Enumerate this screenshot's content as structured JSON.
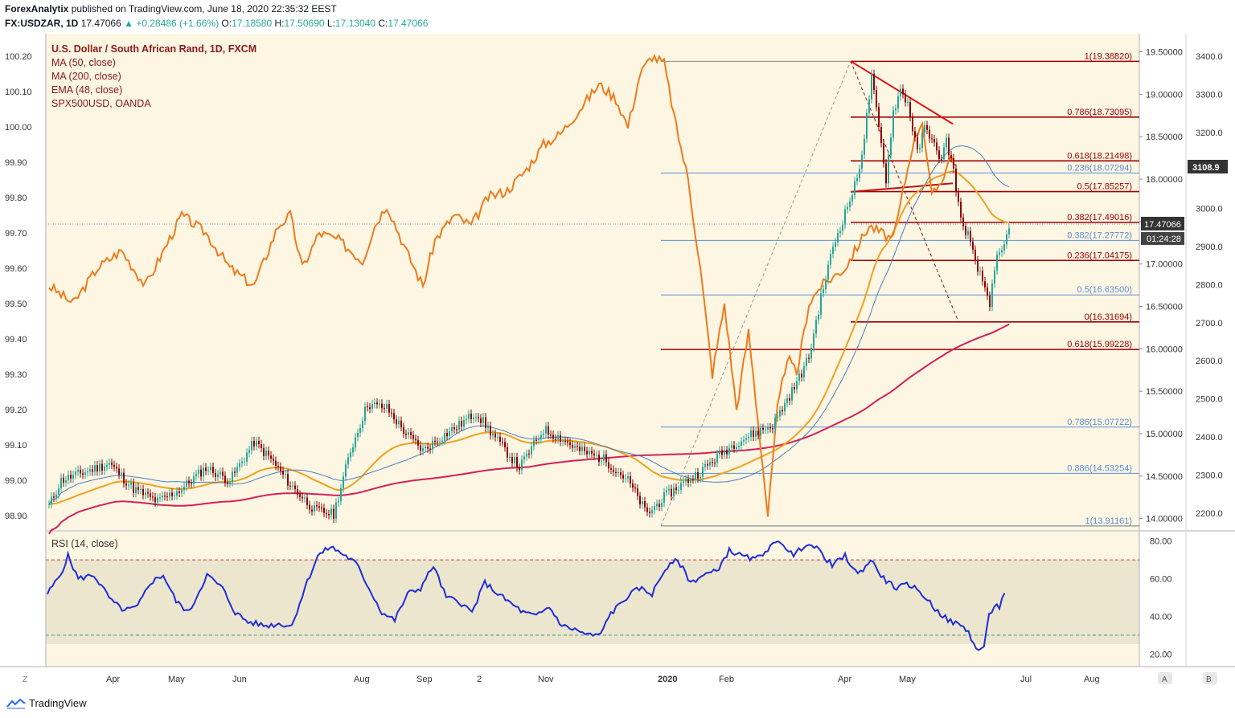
{
  "header": {
    "publisher": "ForexAnalytix",
    "published_text": "published on TradingView.com, June 18, 2020 22:35:32 EEST",
    "symbol": "FX:USDZAR, 1D",
    "last": "17.47066",
    "change": "+0.28486 (+1.66%)",
    "o_label": "O:",
    "o": "17.18580",
    "h_label": "H:",
    "h": "17.50690",
    "l_label": "L:",
    "l": "17.13040",
    "c_label": "C:",
    "c": "17.47066"
  },
  "legend": {
    "title": "U.S. Dollar / South African Rand, 1D, FXCM",
    "items": [
      "MA (50, close)",
      "MA (200, close)",
      "EMA (48, close)",
      "SPX500USD, OANDA"
    ]
  },
  "rsi_label": "RSI (14, close)",
  "footer": {
    "brand": "TradingView"
  },
  "axis_buttons": {
    "left": "Z",
    "right_a": "A",
    "right_b": "B"
  },
  "colors": {
    "background": "#fdf6e3",
    "candle_up": "#26a69a",
    "candle_down": "#8b0000",
    "ma50": "#4a7fc1",
    "ma200": "#d41f5c",
    "ema48": "#f0a020",
    "spx": "#f07a1a",
    "fib_red": "#a00000",
    "fib_blue": "#5b8fd6",
    "rsi": "#1c2dd8",
    "price_tag": "#333333"
  },
  "chart_data": {
    "type": "candlestick",
    "title": "U.S. Dollar / South African Rand, 1D, FXCM",
    "x_labels": [
      "Apr",
      "May",
      "Jun",
      "Aug",
      "Sep",
      "2",
      "Nov",
      "2020",
      "Feb",
      "Apr",
      "May",
      "Jul",
      "Aug"
    ],
    "left_axis": {
      "ticks": [
        "100.20",
        "100.10",
        "100.00",
        "99.90",
        "99.80",
        "99.70",
        "99.60",
        "99.50",
        "99.40",
        "99.30",
        "99.20",
        "99.10",
        "99.00",
        "98.90"
      ],
      "range": [
        98.88,
        100.25
      ]
    },
    "price_axis": {
      "ticks": [
        "19.50000",
        "19.00000",
        "18.50000",
        "18.00000",
        "17.50000",
        "17.00000",
        "16.50000",
        "16.00000",
        "15.50000",
        "15.00000",
        "14.50000",
        "14.00000"
      ],
      "range": [
        13.75,
        19.6
      ]
    },
    "spx_axis": {
      "ticks": [
        "3400.0",
        "3300.0",
        "3200.0",
        "3100.0",
        "3000.0",
        "2900.0",
        "2800.0",
        "2700.0",
        "2600.0",
        "2500.0",
        "2400.0",
        "2300.0",
        "2200.0"
      ]
    },
    "last_price": "17.47066",
    "countdown": "01:24:28",
    "spx_last": "3108.9",
    "usdzar_close_anchors": [
      [
        0,
        14.15
      ],
      [
        5,
        14.45
      ],
      [
        15,
        14.55
      ],
      [
        25,
        14.65
      ],
      [
        35,
        14.35
      ],
      [
        45,
        14.2
      ],
      [
        55,
        14.35
      ],
      [
        65,
        14.6
      ],
      [
        75,
        14.45
      ],
      [
        85,
        14.9
      ],
      [
        92,
        14.7
      ],
      [
        100,
        14.4
      ],
      [
        110,
        14.1
      ],
      [
        118,
        14.05
      ],
      [
        125,
        14.8
      ],
      [
        132,
        15.35
      ],
      [
        140,
        15.3
      ],
      [
        148,
        15.0
      ],
      [
        155,
        14.8
      ],
      [
        162,
        14.95
      ],
      [
        170,
        15.1
      ],
      [
        177,
        15.25
      ],
      [
        185,
        14.95
      ],
      [
        195,
        14.6
      ],
      [
        205,
        15.05
      ],
      [
        212,
        14.95
      ],
      [
        220,
        14.8
      ],
      [
        230,
        14.7
      ],
      [
        240,
        14.45
      ],
      [
        248,
        14.05
      ],
      [
        255,
        14.25
      ],
      [
        262,
        14.4
      ],
      [
        270,
        14.55
      ],
      [
        278,
        14.75
      ],
      [
        285,
        14.9
      ],
      [
        292,
        15.0
      ],
      [
        300,
        15.1
      ],
      [
        305,
        15.35
      ],
      [
        310,
        15.6
      ],
      [
        315,
        15.9
      ],
      [
        320,
        16.6
      ],
      [
        325,
        17.2
      ],
      [
        330,
        17.6
      ],
      [
        335,
        18.0
      ],
      [
        338,
        18.5
      ],
      [
        341,
        19.2
      ],
      [
        344,
        18.6
      ],
      [
        347,
        18.0
      ],
      [
        350,
        18.8
      ],
      [
        353,
        19.05
      ],
      [
        356,
        18.9
      ],
      [
        360,
        18.3
      ],
      [
        363,
        18.6
      ],
      [
        366,
        18.5
      ],
      [
        369,
        18.2
      ],
      [
        372,
        18.45
      ],
      [
        375,
        18.1
      ],
      [
        378,
        17.5
      ],
      [
        381,
        17.35
      ],
      [
        384,
        17.0
      ],
      [
        387,
        16.8
      ],
      [
        390,
        16.55
      ],
      [
        393,
        17.05
      ],
      [
        396,
        17.2
      ],
      [
        398,
        17.47
      ]
    ],
    "rsi": {
      "label": "RSI (14, close)",
      "ticks": [
        "80.00",
        "60.00",
        "40.00",
        "20.00"
      ],
      "overbought": 70,
      "oversold": 30,
      "anchors": [
        [
          0,
          52
        ],
        [
          5,
          62
        ],
        [
          8,
          72
        ],
        [
          12,
          60
        ],
        [
          18,
          62
        ],
        [
          25,
          48
        ],
        [
          30,
          43
        ],
        [
          35,
          45
        ],
        [
          40,
          58
        ],
        [
          45,
          62
        ],
        [
          50,
          48
        ],
        [
          55,
          42
        ],
        [
          62,
          62
        ],
        [
          68,
          55
        ],
        [
          73,
          42
        ],
        [
          78,
          37
        ],
        [
          85,
          35
        ],
        [
          90,
          36
        ],
        [
          95,
          35
        ],
        [
          100,
          55
        ],
        [
          105,
          72
        ],
        [
          110,
          77
        ],
        [
          115,
          73
        ],
        [
          120,
          68
        ],
        [
          125,
          55
        ],
        [
          130,
          42
        ],
        [
          135,
          38
        ],
        [
          140,
          52
        ],
        [
          145,
          55
        ],
        [
          150,
          67
        ],
        [
          155,
          50
        ],
        [
          160,
          48
        ],
        [
          165,
          42
        ],
        [
          170,
          58
        ],
        [
          175,
          52
        ],
        [
          180,
          47
        ],
        [
          185,
          42
        ],
        [
          190,
          40
        ],
        [
          195,
          45
        ],
        [
          200,
          35
        ],
        [
          205,
          33
        ],
        [
          210,
          30
        ],
        [
          215,
          30
        ],
        [
          218,
          40
        ],
        [
          225,
          50
        ],
        [
          230,
          55
        ],
        [
          235,
          52
        ],
        [
          240,
          65
        ],
        [
          245,
          70
        ],
        [
          250,
          58
        ],
        [
          255,
          62
        ],
        [
          260,
          64
        ],
        [
          265,
          75
        ],
        [
          270,
          72
        ],
        [
          275,
          70
        ],
        [
          280,
          76
        ],
        [
          285,
          80
        ],
        [
          290,
          72
        ],
        [
          295,
          79
        ],
        [
          300,
          75
        ],
        [
          305,
          67
        ],
        [
          310,
          72
        ],
        [
          315,
          62
        ],
        [
          320,
          70
        ],
        [
          325,
          60
        ],
        [
          330,
          55
        ],
        [
          335,
          57
        ],
        [
          340,
          52
        ],
        [
          345,
          44
        ],
        [
          350,
          38
        ],
        [
          355,
          35
        ],
        [
          358,
          32
        ],
        [
          361,
          22
        ],
        [
          364,
          24
        ],
        [
          366,
          40
        ],
        [
          368,
          46
        ],
        [
          370,
          45
        ],
        [
          372,
          53
        ]
      ]
    },
    "fib_levels_red": [
      {
        "label": "1(19.38820)",
        "value": 19.3882
      },
      {
        "label": "0.786(18.73095)",
        "value": 18.73095
      },
      {
        "label": "0.618(18.21498)",
        "value": 18.21498
      },
      {
        "label": "0.5(17.85257)",
        "value": 17.85257
      },
      {
        "label": "0.382(17.49016)",
        "value": 17.49016
      },
      {
        "label": "0.236(17.04175)",
        "value": 17.04175
      },
      {
        "label": "0(16.31694)",
        "value": 16.31694
      },
      {
        "label": "0.618(15.99228)",
        "value": 15.99228
      }
    ],
    "fib_levels_blue": [
      {
        "label": "0.236(18.07294)",
        "value": 18.07294
      },
      {
        "label": "0.382(17.27772)",
        "value": 17.27772
      },
      {
        "label": "0.5(16.63500)",
        "value": 16.635
      },
      {
        "label": "0.786(15.07722)",
        "value": 15.07722
      },
      {
        "label": "0.886(14.53254)",
        "value": 14.53254
      },
      {
        "label": "1(13.91161)",
        "value": 13.91161
      }
    ]
  }
}
